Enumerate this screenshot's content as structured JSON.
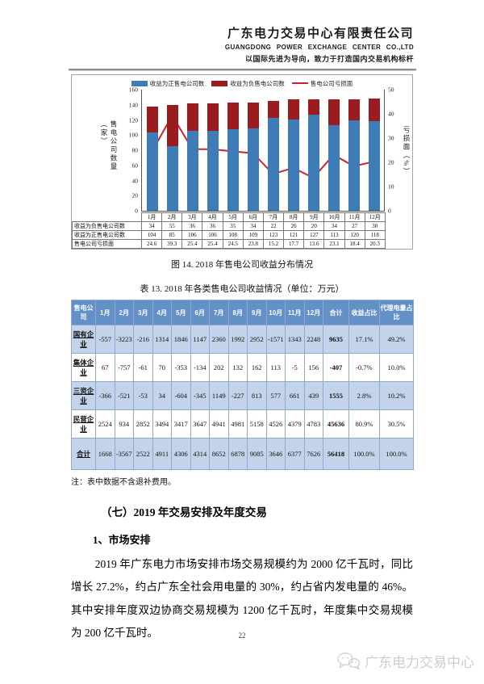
{
  "header": {
    "company_cn": "广东电力交易中心有限责任公司",
    "company_en": "GUANGDONG POWER EXCHANGE CENTER CO.,LTD",
    "slogan": "以国际先进为导向，致力于打造国内交易机构标杆"
  },
  "chart_data": {
    "type": "bar",
    "subtype": "stacked-bars-with-line",
    "title": "2018年售电公司收益分布情况",
    "categories": [
      "1月",
      "2月",
      "3月",
      "4月",
      "5月",
      "6月",
      "7月",
      "8月",
      "9月",
      "10月",
      "11月",
      "12月"
    ],
    "series": [
      {
        "name": "收益为正售电公司数",
        "type": "bar",
        "color": "#3E7CB8",
        "values": [
          104,
          85,
          106,
          106,
          108,
          109,
          123,
          121,
          127,
          113,
          120,
          118
        ]
      },
      {
        "name": "收益为负售电公司数",
        "type": "bar",
        "color": "#9B1C1F",
        "values": [
          34,
          55,
          36,
          36,
          35,
          34,
          22,
          26,
          20,
          34,
          27,
          30
        ]
      },
      {
        "name": "售电公司亏损面",
        "type": "line",
        "color": "#C9242B",
        "axis": "right",
        "values": [
          24.6,
          39.3,
          25.4,
          25.4,
          24.5,
          23.8,
          15.2,
          17.7,
          13.6,
          23.1,
          18.4,
          20.3
        ]
      }
    ],
    "left_axis": {
      "label": "售电公司数量（家）",
      "min": 0,
      "max": 160,
      "step": 20
    },
    "right_axis": {
      "label": "亏损面（%）",
      "min": 0,
      "max": 50,
      "step": 10
    },
    "legend_position": "top",
    "grid": false
  },
  "chart_table": {
    "rows": [
      {
        "label": "收益为负售电公司数",
        "values": [
          "34",
          "55",
          "36",
          "36",
          "35",
          "34",
          "22",
          "26",
          "20",
          "34",
          "27",
          "30"
        ]
      },
      {
        "label": "收益为正售电公司数",
        "values": [
          "104",
          "85",
          "106",
          "106",
          "108",
          "109",
          "123",
          "121",
          "127",
          "113",
          "120",
          "118"
        ]
      },
      {
        "label": "售电公司亏损面",
        "values": [
          "24.6",
          "39.3",
          "25.4",
          "25.4",
          "24.5",
          "23.8",
          "15.2",
          "17.7",
          "13.6",
          "23.1",
          "18.4",
          "20.3"
        ]
      }
    ]
  },
  "figure_caption": "图 14. 2018 年售电公司收益分布情况",
  "table_caption": "表 13. 2018 年各类售电公司收益情况（单位：万元）",
  "income_table": {
    "headers": [
      "售电公司",
      "1月",
      "2月",
      "3月",
      "4月",
      "5月",
      "6月",
      "7月",
      "8月",
      "9月",
      "10月",
      "11月",
      "12月",
      "合计",
      "收益占比",
      "代理电量占比"
    ],
    "rows": [
      {
        "label": "国有企业",
        "cells": [
          "-557",
          "-3223",
          "-216",
          "1314",
          "1846",
          "1147",
          "2360",
          "1992",
          "2952",
          "-1571",
          "1343",
          "2248",
          "9635",
          "17.1%",
          "49.2%"
        ]
      },
      {
        "label": "集体企业",
        "cells": [
          "67",
          "-757",
          "-61",
          "70",
          "-353",
          "-134",
          "202",
          "132",
          "162",
          "113",
          "-5",
          "156",
          "-407",
          "-0.7%",
          "10.0%"
        ]
      },
      {
        "label": "三资企业",
        "cells": [
          "-366",
          "-521",
          "-53",
          "34",
          "-604",
          "-345",
          "1149",
          "-227",
          "813",
          "577",
          "661",
          "439",
          "1555",
          "2.8%",
          "10.2%"
        ]
      },
      {
        "label": "民营企业",
        "cells": [
          "2524",
          "934",
          "2852",
          "3494",
          "3417",
          "3647",
          "4941",
          "4981",
          "5158",
          "4526",
          "4379",
          "4783",
          "45636",
          "80.9%",
          "30.5%"
        ]
      },
      {
        "label": "合计",
        "cells": [
          "1668",
          "-3567",
          "2522",
          "4911",
          "4306",
          "4314",
          "8652",
          "6878",
          "9085",
          "3646",
          "6377",
          "7626",
          "56418",
          "100.0%",
          "100.0%"
        ]
      }
    ]
  },
  "note": "注：表中数据不含退补费用。",
  "section_heading": "（七）2019 年交易安排及年度交易",
  "sub_heading": "1、市场安排",
  "paragraph": "2019 年广东电力市场安排市场交易规模约为 2000 亿千瓦时，同比增长 27.2%，约占广东全社会用电量的 30%，约占省内发电量的 46%。其中安排年度双边协商交易规模为 1200 亿千瓦时，年度集中交易规模为 200 亿千瓦时。",
  "page_number": "22",
  "watermark": "广东电力交易中心"
}
